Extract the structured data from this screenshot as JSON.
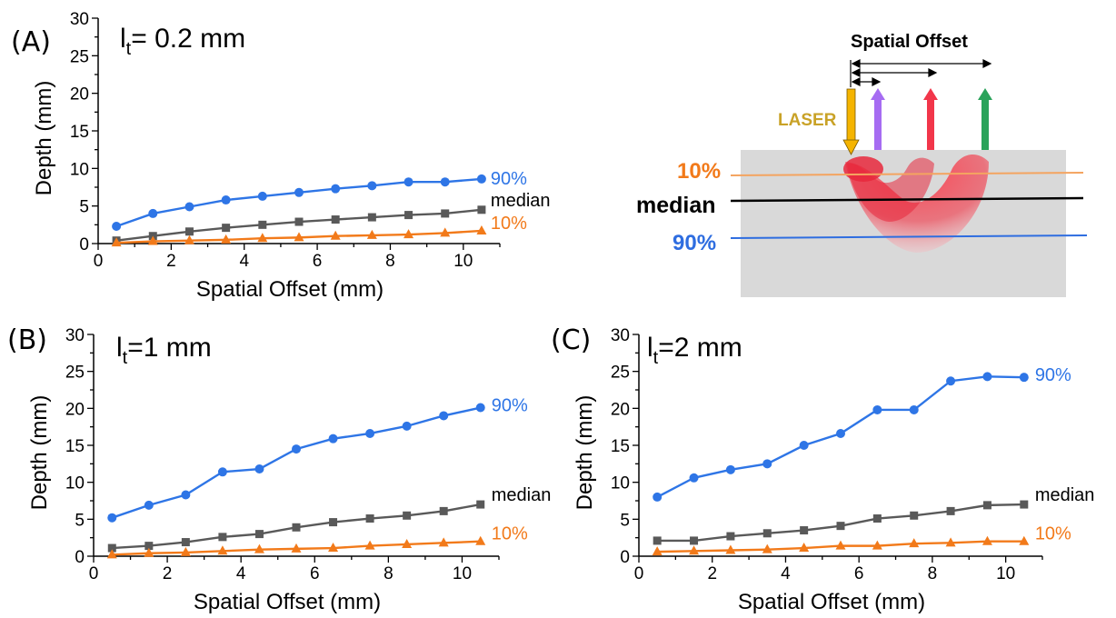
{
  "colors": {
    "p90": "#2e75e6",
    "median": "#595959",
    "p10": "#f27a1a",
    "axis": "#000000",
    "tissue": "#d9d9d9",
    "laser_arrow": "#f5b400",
    "laser_text": "#c9a227",
    "purple_arrow": "#a66cf2",
    "red_arrow": "#f2364a",
    "green_arrow": "#2aa35a",
    "p10_line": "#f4a460",
    "median_line": "#000000",
    "p90_line": "#2e6de0"
  },
  "diagram": {
    "title": "Spatial Offset",
    "laser_label": "LASER",
    "label_10": "10%",
    "label_median": "median",
    "label_90": "90%"
  },
  "chart_data": [
    {
      "panel": "(A)",
      "lt_prefix": "l",
      "lt_sub": "t",
      "lt_value": "= 0.2 mm",
      "type": "line",
      "xlabel": "Spatial Offset (mm)",
      "ylabel": "Depth (mm)",
      "xlim": [
        0,
        11
      ],
      "ylim": [
        0,
        30
      ],
      "x_ticks": [
        0,
        2,
        4,
        6,
        8,
        10
      ],
      "y_ticks": [
        0,
        5,
        10,
        15,
        20,
        25,
        30
      ],
      "x": [
        0.5,
        1.5,
        2.5,
        3.5,
        4.5,
        5.5,
        6.5,
        7.5,
        8.5,
        9.5,
        10.5
      ],
      "series": [
        {
          "name": "90%",
          "marker": "circle",
          "values": [
            2.3,
            4.0,
            4.9,
            5.8,
            6.3,
            6.8,
            7.3,
            7.7,
            8.2,
            8.2,
            8.6
          ]
        },
        {
          "name": "median",
          "marker": "square",
          "values": [
            0.4,
            1.0,
            1.6,
            2.1,
            2.5,
            2.9,
            3.2,
            3.5,
            3.8,
            4.0,
            4.5
          ]
        },
        {
          "name": "10%",
          "marker": "triangle",
          "values": [
            0.1,
            0.3,
            0.4,
            0.5,
            0.7,
            0.8,
            1.0,
            1.1,
            1.2,
            1.4,
            1.7
          ]
        }
      ]
    },
    {
      "panel": "(B)",
      "lt_prefix": "l",
      "lt_sub": "t",
      "lt_value": "=1 mm",
      "type": "line",
      "xlabel": "Spatial Offset (mm)",
      "ylabel": "Depth (mm)",
      "xlim": [
        0,
        11
      ],
      "ylim": [
        0,
        30
      ],
      "x_ticks": [
        0,
        2,
        4,
        6,
        8,
        10
      ],
      "y_ticks": [
        0,
        5,
        10,
        15,
        20,
        25,
        30
      ],
      "x": [
        0.5,
        1.5,
        2.5,
        3.5,
        4.5,
        5.5,
        6.5,
        7.5,
        8.5,
        9.5,
        10.5
      ],
      "series": [
        {
          "name": "90%",
          "marker": "circle",
          "values": [
            5.2,
            6.9,
            8.3,
            11.4,
            11.8,
            14.5,
            15.9,
            16.6,
            17.6,
            19.0,
            20.1
          ]
        },
        {
          "name": "median",
          "marker": "square",
          "values": [
            1.1,
            1.4,
            1.9,
            2.6,
            3.0,
            3.9,
            4.6,
            5.1,
            5.5,
            6.1,
            7.0
          ]
        },
        {
          "name": "10%",
          "marker": "triangle",
          "values": [
            0.2,
            0.4,
            0.5,
            0.7,
            0.9,
            1.0,
            1.1,
            1.4,
            1.6,
            1.8,
            2.0
          ]
        }
      ]
    },
    {
      "panel": "(C)",
      "lt_prefix": "l",
      "lt_sub": "t",
      "lt_value": "=2 mm",
      "type": "line",
      "xlabel": "Spatial Offset (mm)",
      "ylabel": "Depth (mm)",
      "xlim": [
        0,
        11
      ],
      "ylim": [
        0,
        30
      ],
      "x_ticks": [
        0,
        2,
        4,
        6,
        8,
        10
      ],
      "y_ticks": [
        0,
        5,
        10,
        15,
        20,
        25,
        30
      ],
      "x": [
        0.5,
        1.5,
        2.5,
        3.5,
        4.5,
        5.5,
        6.5,
        7.5,
        8.5,
        9.5,
        10.5
      ],
      "series": [
        {
          "name": "90%",
          "marker": "circle",
          "values": [
            8.0,
            10.6,
            11.7,
            12.5,
            15.0,
            16.6,
            19.8,
            19.8,
            23.7,
            24.3,
            24.2
          ]
        },
        {
          "name": "median",
          "marker": "square",
          "values": [
            2.1,
            2.1,
            2.7,
            3.1,
            3.5,
            4.1,
            5.1,
            5.5,
            6.1,
            6.9,
            7.0
          ]
        },
        {
          "name": "10%",
          "marker": "triangle",
          "values": [
            0.6,
            0.7,
            0.8,
            0.9,
            1.1,
            1.4,
            1.4,
            1.7,
            1.8,
            2.0,
            2.0
          ]
        }
      ]
    }
  ]
}
